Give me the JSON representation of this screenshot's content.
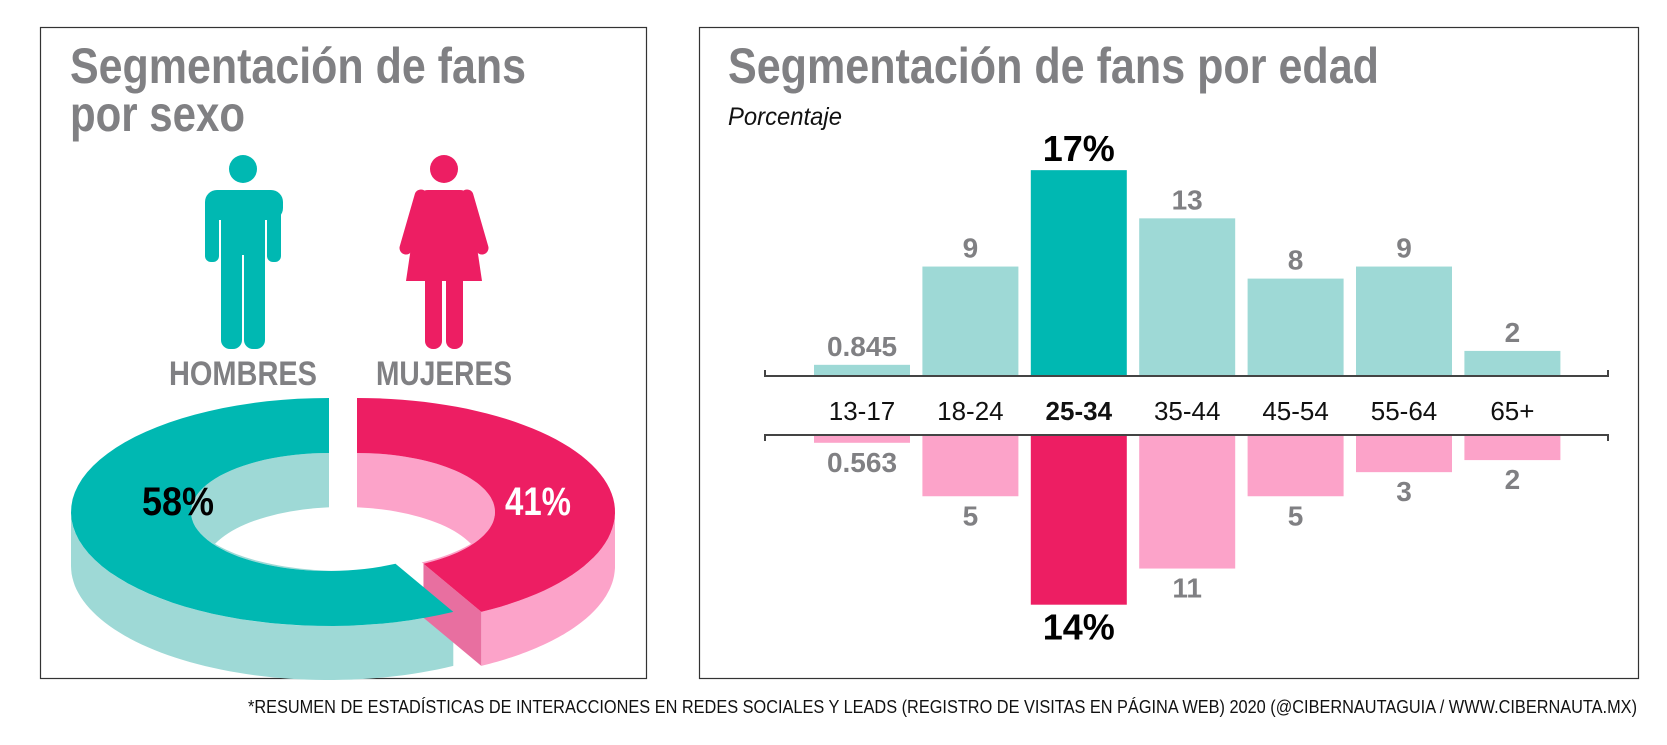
{
  "colors": {
    "teal": "#00b8b2",
    "teal_light": "#9ed9d6",
    "pink": "#ed1e63",
    "pink_light": "#fca3c9",
    "pink_face": "#e86fa0",
    "title_gray": "#808083"
  },
  "chart_data": [
    {
      "type": "pie",
      "title": "Segmentación de fans por sexo",
      "title_line1": "Segmentación de fans",
      "title_line2": "por sexo",
      "style": "3d-donut",
      "categories": [
        "HOMBRES",
        "MUJERES"
      ],
      "values": [
        58,
        41
      ],
      "labels": [
        "58%",
        "41%"
      ],
      "icons": [
        "male-figure-icon",
        "female-figure-icon"
      ]
    },
    {
      "type": "bar",
      "title": "Segmentación de fans por edad",
      "subtitle": "Porcentaje",
      "orientation": "mirrored (upper = hombres, lower = mujeres)",
      "categories": [
        "13-17",
        "18-24",
        "25-34",
        "35-44",
        "45-54",
        "55-64",
        "65+"
      ],
      "highlight_category": "25-34",
      "series": [
        {
          "values": [
            0.845,
            9,
            17,
            13,
            8,
            9,
            2
          ],
          "labels": [
            "0.845",
            "9",
            "17%",
            "13",
            "8",
            "9",
            "2"
          ]
        },
        {
          "values": [
            0.563,
            5,
            14,
            11,
            5,
            3,
            2
          ],
          "labels": [
            "0.563",
            "5",
            "14%",
            "11",
            "5",
            "3",
            "2"
          ]
        }
      ],
      "grid": false
    }
  ],
  "footer": "*RESUMEN DE ESTADÍSTICAS DE INTERACCIONES EN REDES SOCIALES Y LEADS (REGISTRO DE VISITAS EN PÁGINA WEB) 2020 (@CIBERNAUTAGUIA / WWW.CIBERNAUTA.MX)"
}
